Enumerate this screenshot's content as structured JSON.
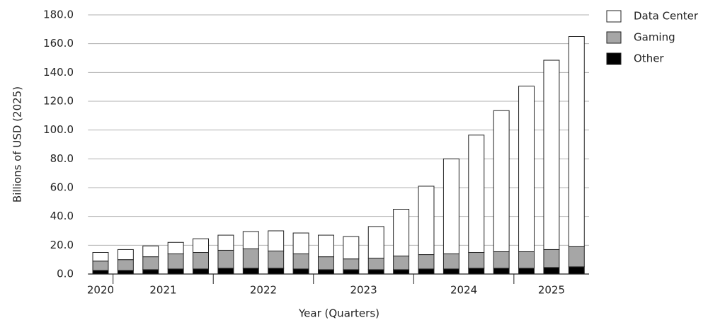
{
  "chart_data": {
    "type": "stacked_bar",
    "y_label": "Billions of USD (2025)",
    "x_label": "Year (Quarters)",
    "categories": [
      "2020",
      "2021",
      "2021",
      "2021",
      "2021",
      "2022",
      "2022",
      "2022",
      "2022",
      "2023",
      "2023",
      "2023",
      "2023",
      "2024",
      "2024",
      "2024",
      "2024",
      "2025",
      "2025",
      "2025"
    ],
    "series": [
      {
        "name": "Other",
        "color": "#000000",
        "values": [
          2.5,
          2.5,
          3,
          3.5,
          3.5,
          4,
          4,
          4,
          3.5,
          3,
          3,
          3,
          3,
          3.5,
          3.5,
          4,
          4,
          4,
          4.5,
          5
        ]
      },
      {
        "name": "Gaming",
        "color": "#a6a6a6",
        "values": [
          6.5,
          7.5,
          9,
          10.5,
          11.5,
          12.5,
          13.5,
          12,
          10.5,
          9,
          7.5,
          8,
          9.5,
          10,
          10.5,
          11,
          11.5,
          11.5,
          12.5,
          14
        ]
      },
      {
        "name": "Data Center",
        "color": "#ffffff",
        "values": [
          6,
          7,
          7.5,
          8,
          9.5,
          10.5,
          12,
          14,
          14.5,
          15,
          15.5,
          22,
          32.5,
          47.5,
          66,
          81.5,
          98,
          115,
          131.5,
          146
        ]
      }
    ],
    "ylim": [
      0,
      180
    ],
    "yticks": [
      {
        "value": 0,
        "label": "0.0"
      },
      {
        "value": 20,
        "label": "20.0"
      },
      {
        "value": 40,
        "label": "40.0"
      },
      {
        "value": 60,
        "label": "60.0"
      },
      {
        "value": 80,
        "label": "80.0"
      },
      {
        "value": 100,
        "label": "100.0"
      },
      {
        "value": 120,
        "label": "120.0"
      },
      {
        "value": 140,
        "label": "140.0"
      },
      {
        "value": 160,
        "label": "160.0"
      },
      {
        "value": 180,
        "label": "180.0"
      }
    ],
    "grid": true,
    "legend": "right"
  }
}
